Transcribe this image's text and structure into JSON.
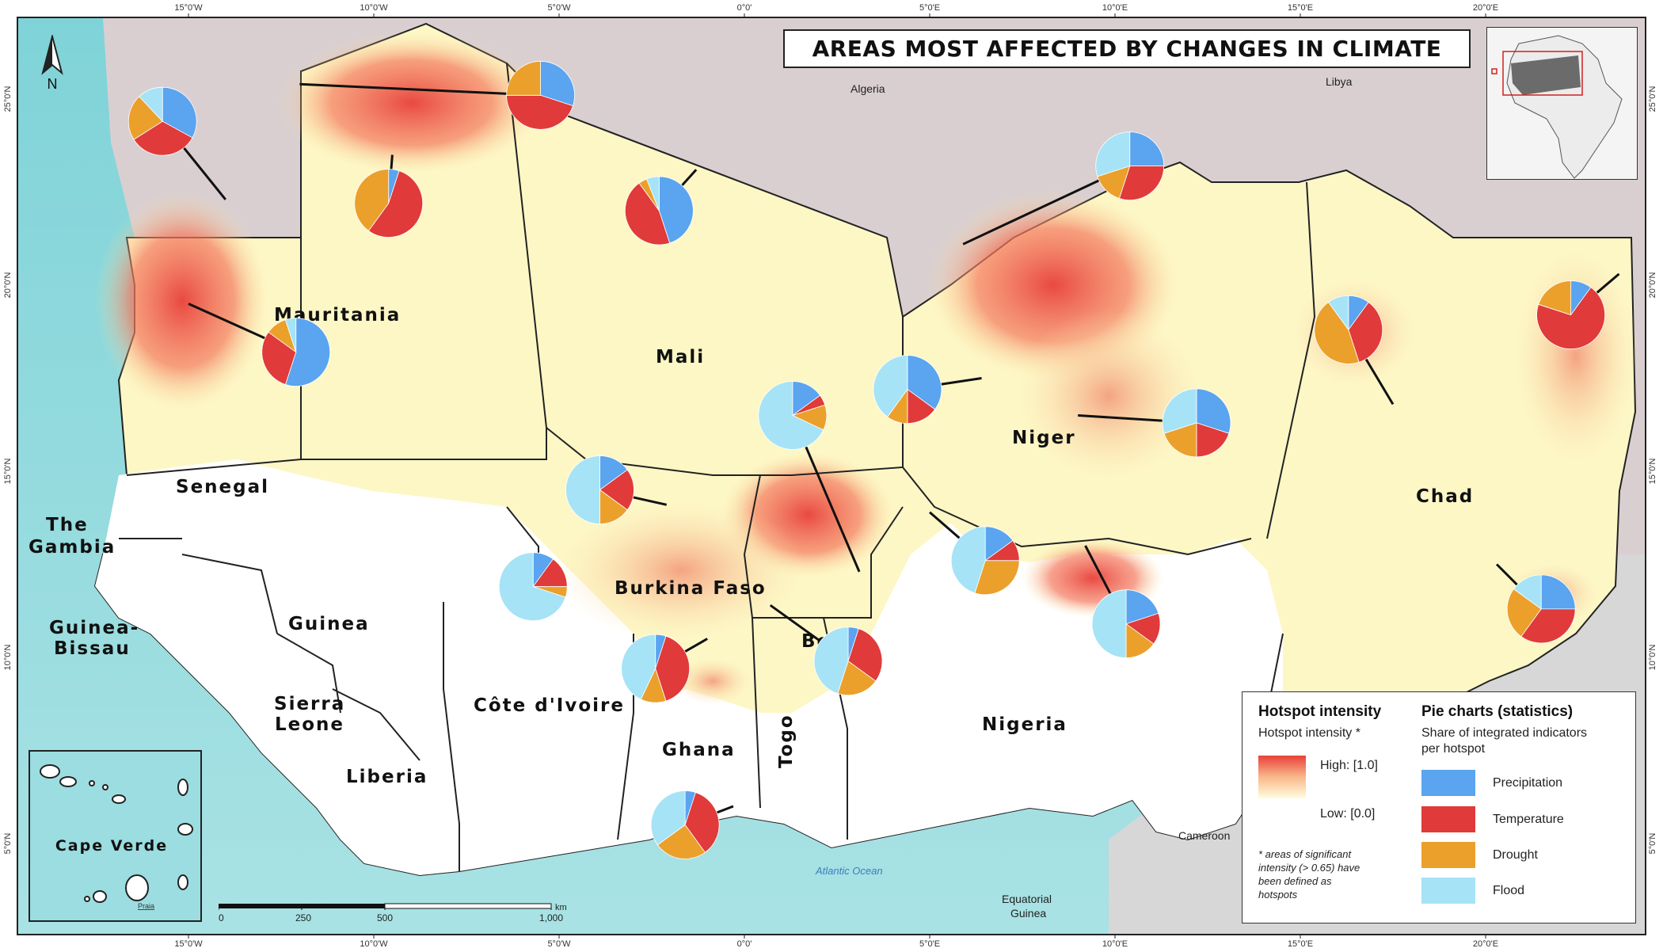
{
  "title": "AREAS MOST AFFECTED BY CHANGES IN CLIMATE",
  "colors": {
    "precipitation": "#5aa4f0",
    "temperature": "#e03a3a",
    "drought": "#eba02c",
    "flood": "#a6e3f6",
    "ocean": "#8fd6da",
    "land_outside": "#dcdcdc",
    "hotspot_high": "#e8403a",
    "hotspot_low": "#fffde0"
  },
  "graticule": {
    "top": [
      "15°0'W",
      "10°0'W",
      "5°0'W",
      "0°0'",
      "5°0'E",
      "10°0'E",
      "15°0'E",
      "20°0'E"
    ],
    "bottom": [
      "15°0'W",
      "10°0'W",
      "5°0'W",
      "0°0'",
      "5°0'E",
      "10°0'E",
      "15°0'E",
      "20°0'E"
    ],
    "left": [
      "25°0'N",
      "20°0'N",
      "15°0'N",
      "10°0'N",
      "5°0'N"
    ],
    "right": [
      "25°0'N",
      "20°0'N",
      "15°0'N",
      "10°0'N",
      "5°0'N"
    ]
  },
  "north": "N",
  "countries": {
    "mauritania": "Mauritania",
    "mali": "Mali",
    "niger": "Niger",
    "chad": "Chad",
    "senegal": "Senegal",
    "gambia_1": "The",
    "gambia_2": "Gambia",
    "guinea_bissau_1": "Guinea-",
    "guinea_bissau_2": "Bissau",
    "guinea": "Guinea",
    "sierra_leone_1": "Sierra",
    "sierra_leone_2": "Leone",
    "liberia": "Liberia",
    "cote_divoire": "Côte d'Ivoire",
    "burkina_faso": "Burkina Faso",
    "ghana": "Ghana",
    "togo": "Togo",
    "benin": "Benin",
    "nigeria": "Nigeria",
    "cape_verde": "Cape Verde"
  },
  "neighbours": {
    "algeria": "Algeria",
    "libya": "Libya",
    "cameroon": "Cameroon",
    "equatorial_guinea_1": "Equatorial",
    "equatorial_guinea_2": "Guinea",
    "atlantic": "Atlantic Ocean",
    "praia": "Praia"
  },
  "scale_bar": {
    "ticks": [
      "0",
      "250",
      "500",
      "1,000"
    ],
    "unit": "km"
  },
  "legend": {
    "intensity_title": "Hotspot intensity",
    "intensity_sub": "Hotspot intensity *",
    "high": "High: [1.0]",
    "low": "Low: [0.0]",
    "note": [
      "* areas of significant",
      "intensity (> 0.65) have",
      "been defined as",
      "hotspots"
    ],
    "pie_title": "Pie charts (statistics)",
    "pie_sub": [
      "Share of integrated indicators",
      "per hotspot"
    ],
    "items": [
      "Precipitation",
      "Temperature",
      "Drought",
      "Flood"
    ]
  },
  "hotspots": [
    {
      "lon": -15.7,
      "lat": 24.4,
      "shares": {
        "precipitation": 0.33,
        "temperature": 0.33,
        "drought": 0.22,
        "flood": 0.12
      }
    },
    {
      "lon": -5.5,
      "lat": 25.1,
      "shares": {
        "precipitation": 0.3,
        "temperature": 0.45,
        "drought": 0.25,
        "flood": 0.0
      }
    },
    {
      "lon": -9.6,
      "lat": 22.2,
      "shares": {
        "precipitation": 0.05,
        "temperature": 0.55,
        "drought": 0.4,
        "flood": 0.0
      }
    },
    {
      "lon": -2.3,
      "lat": 22.0,
      "shares": {
        "precipitation": 0.45,
        "temperature": 0.45,
        "drought": 0.04,
        "flood": 0.06
      }
    },
    {
      "lon": 10.4,
      "lat": 23.2,
      "shares": {
        "precipitation": 0.25,
        "temperature": 0.3,
        "drought": 0.15,
        "flood": 0.3
      }
    },
    {
      "lon": -12.1,
      "lat": 18.2,
      "shares": {
        "precipitation": 0.55,
        "temperature": 0.3,
        "drought": 0.1,
        "flood": 0.05
      }
    },
    {
      "lon": 4.4,
      "lat": 17.2,
      "shares": {
        "precipitation": 0.35,
        "temperature": 0.15,
        "drought": 0.1,
        "flood": 0.4
      }
    },
    {
      "lon": 1.3,
      "lat": 16.5,
      "shares": {
        "precipitation": 0.15,
        "temperature": 0.05,
        "drought": 0.12,
        "flood": 0.68
      }
    },
    {
      "lon": 12.2,
      "lat": 16.3,
      "shares": {
        "precipitation": 0.3,
        "temperature": 0.2,
        "drought": 0.2,
        "flood": 0.3
      }
    },
    {
      "lon": 16.3,
      "lat": 18.8,
      "shares": {
        "precipitation": 0.1,
        "temperature": 0.35,
        "drought": 0.45,
        "flood": 0.1
      }
    },
    {
      "lon": 22.3,
      "lat": 19.2,
      "shares": {
        "precipitation": 0.1,
        "temperature": 0.7,
        "drought": 0.2,
        "flood": 0.0
      }
    },
    {
      "lon": -3.9,
      "lat": 14.5,
      "shares": {
        "precipitation": 0.15,
        "temperature": 0.2,
        "drought": 0.15,
        "flood": 0.5
      }
    },
    {
      "lon": 6.5,
      "lat": 12.6,
      "shares": {
        "precipitation": 0.15,
        "temperature": 0.1,
        "drought": 0.3,
        "flood": 0.45
      }
    },
    {
      "lon": 10.3,
      "lat": 10.9,
      "shares": {
        "precipitation": 0.2,
        "temperature": 0.15,
        "drought": 0.15,
        "flood": 0.5
      }
    },
    {
      "lon": 21.5,
      "lat": 11.3,
      "shares": {
        "precipitation": 0.25,
        "temperature": 0.35,
        "drought": 0.25,
        "flood": 0.15
      }
    },
    {
      "lon": -5.7,
      "lat": 11.9,
      "shares": {
        "precipitation": 0.1,
        "temperature": 0.15,
        "drought": 0.05,
        "flood": 0.7
      }
    },
    {
      "lon": 2.8,
      "lat": 9.9,
      "shares": {
        "precipitation": 0.05,
        "temperature": 0.3,
        "drought": 0.2,
        "flood": 0.45
      }
    },
    {
      "lon": -2.4,
      "lat": 9.7,
      "shares": {
        "precipitation": 0.05,
        "temperature": 0.4,
        "drought": 0.12,
        "flood": 0.43
      }
    },
    {
      "lon": -1.6,
      "lat": 5.5,
      "shares": {
        "precipitation": 0.05,
        "temperature": 0.35,
        "drought": 0.25,
        "flood": 0.35
      }
    }
  ]
}
